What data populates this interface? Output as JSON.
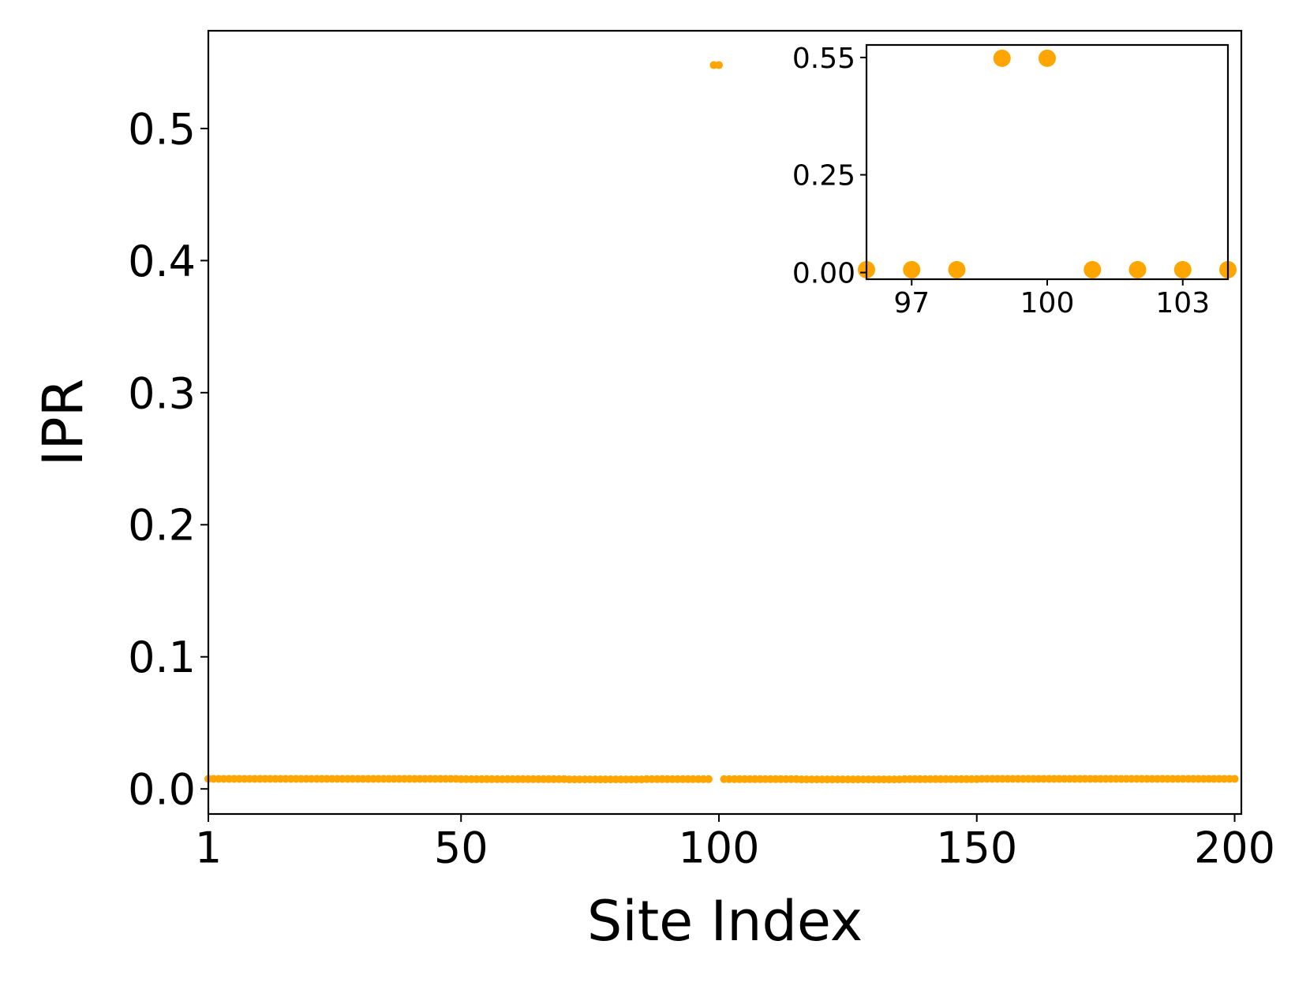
{
  "chart_data": [
    {
      "type": "scatter",
      "xlabel": "Site Index",
      "ylabel": "IPR",
      "color": "#ffa500",
      "x": [
        1,
        2,
        3,
        4,
        5,
        6,
        7,
        8,
        9,
        10,
        11,
        12,
        13,
        14,
        15,
        16,
        17,
        18,
        19,
        20,
        21,
        22,
        23,
        24,
        25,
        26,
        27,
        28,
        29,
        30,
        31,
        32,
        33,
        34,
        35,
        36,
        37,
        38,
        39,
        40,
        41,
        42,
        43,
        44,
        45,
        46,
        47,
        48,
        49,
        50,
        51,
        52,
        53,
        54,
        55,
        56,
        57,
        58,
        59,
        60,
        61,
        62,
        63,
        64,
        65,
        66,
        67,
        68,
        69,
        70,
        71,
        72,
        73,
        74,
        75,
        76,
        77,
        78,
        79,
        80,
        81,
        82,
        83,
        84,
        85,
        86,
        87,
        88,
        89,
        90,
        91,
        92,
        93,
        94,
        95,
        96,
        97,
        98,
        99,
        100,
        101,
        102,
        103,
        104,
        105,
        106,
        107,
        108,
        109,
        110,
        111,
        112,
        113,
        114,
        115,
        116,
        117,
        118,
        119,
        120,
        121,
        122,
        123,
        124,
        125,
        126,
        127,
        128,
        129,
        130,
        131,
        132,
        133,
        134,
        135,
        136,
        137,
        138,
        139,
        140,
        141,
        142,
        143,
        144,
        145,
        146,
        147,
        148,
        149,
        150,
        151,
        152,
        153,
        154,
        155,
        156,
        157,
        158,
        159,
        160,
        161,
        162,
        163,
        164,
        165,
        166,
        167,
        168,
        169,
        170,
        171,
        172,
        173,
        174,
        175,
        176,
        177,
        178,
        179,
        180,
        181,
        182,
        183,
        184,
        185,
        186,
        187,
        188,
        189,
        190,
        191,
        192,
        193,
        194,
        195,
        196,
        197,
        198,
        199,
        200
      ],
      "values": [
        0.0076,
        0.0076,
        0.0076,
        0.0076,
        0.0076,
        0.0076,
        0.0076,
        0.0076,
        0.0076,
        0.0076,
        0.0076,
        0.0076,
        0.0076,
        0.0076,
        0.0076,
        0.0076,
        0.0076,
        0.0076,
        0.0076,
        0.0076,
        0.0076,
        0.0076,
        0.0076,
        0.0076,
        0.0076,
        0.0076,
        0.0076,
        0.0076,
        0.0076,
        0.0076,
        0.0076,
        0.0076,
        0.0076,
        0.0076,
        0.0076,
        0.0076,
        0.0076,
        0.0076,
        0.0076,
        0.0076,
        0.0076,
        0.0076,
        0.0076,
        0.0076,
        0.0076,
        0.0076,
        0.0076,
        0.0076,
        0.0076,
        0.0074,
        0.0074,
        0.0074,
        0.0074,
        0.0074,
        0.0074,
        0.0074,
        0.0074,
        0.0074,
        0.0074,
        0.0074,
        0.0074,
        0.0074,
        0.0074,
        0.0074,
        0.0074,
        0.0074,
        0.0074,
        0.0074,
        0.0074,
        0.0074,
        0.0072,
        0.0072,
        0.0072,
        0.0072,
        0.0072,
        0.0072,
        0.0072,
        0.0072,
        0.0072,
        0.0072,
        0.0072,
        0.0072,
        0.0072,
        0.0072,
        0.0072,
        0.0074,
        0.0074,
        0.0074,
        0.0074,
        0.0074,
        0.0074,
        0.0074,
        0.0074,
        0.0074,
        0.0074,
        0.0074,
        0.0074,
        0.0074,
        0.548,
        0.548,
        0.0074,
        0.0074,
        0.0074,
        0.0074,
        0.0074,
        0.0074,
        0.0074,
        0.0074,
        0.0074,
        0.0074,
        0.0074,
        0.0074,
        0.0074,
        0.0074,
        0.0074,
        0.0072,
        0.0072,
        0.0072,
        0.0072,
        0.0072,
        0.0072,
        0.0072,
        0.0072,
        0.0072,
        0.0072,
        0.0072,
        0.0072,
        0.0072,
        0.0072,
        0.0072,
        0.0072,
        0.0072,
        0.0072,
        0.0072,
        0.0072,
        0.0074,
        0.0074,
        0.0074,
        0.0074,
        0.0074,
        0.0074,
        0.0074,
        0.0074,
        0.0074,
        0.0074,
        0.0074,
        0.0074,
        0.0074,
        0.0074,
        0.0074,
        0.0076,
        0.0076,
        0.0076,
        0.0076,
        0.0076,
        0.0076,
        0.0076,
        0.0076,
        0.0076,
        0.0076,
        0.0076,
        0.0076,
        0.0076,
        0.0076,
        0.0076,
        0.0076,
        0.0076,
        0.0076,
        0.0076,
        0.0076,
        0.0076,
        0.0076,
        0.0076,
        0.0076,
        0.0076,
        0.0076,
        0.0076,
        0.0076,
        0.0076,
        0.0076,
        0.0076,
        0.0076,
        0.0076,
        0.0076,
        0.0076,
        0.0076,
        0.0076,
        0.0076,
        0.0076,
        0.0076,
        0.0076,
        0.0076,
        0.0076,
        0.0076,
        0.0076,
        0.0076,
        0.0076,
        0.0076,
        0.0076,
        0.0076
      ],
      "xlim": [
        1,
        201.3
      ],
      "ylim": [
        -0.019,
        0.574
      ],
      "xticks": [
        1,
        50,
        100,
        150,
        200
      ],
      "yticks": [
        {
          "value": 0,
          "label": "0.0"
        },
        0.1,
        0.2,
        0.3,
        0.4,
        0.5
      ]
    },
    {
      "type": "scatter",
      "color": "#ffa500",
      "x": [
        96,
        97,
        98,
        99,
        100,
        101,
        102,
        103,
        104
      ],
      "values": [
        0.0074,
        0.0074,
        0.0074,
        0.548,
        0.548,
        0.0074,
        0.0074,
        0.0074,
        0.0074
      ],
      "xlim": [
        96,
        104
      ],
      "ylim": [
        -0.017,
        0.582
      ],
      "xticks": [
        97,
        100,
        103
      ],
      "yticks": [
        {
          "value": 0,
          "label": "0.00"
        },
        0.25,
        0.55
      ]
    }
  ]
}
